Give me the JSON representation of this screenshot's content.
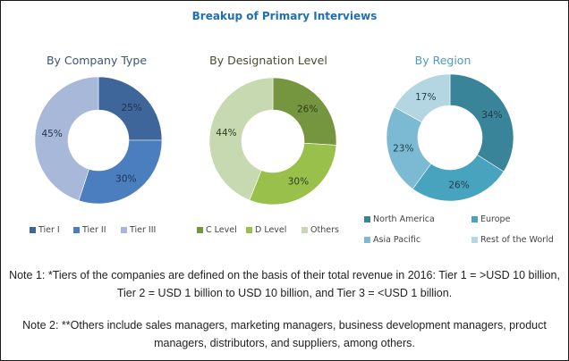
{
  "title": "Breakup of Primary Interviews",
  "chart_data": [
    {
      "type": "pie",
      "subtype": "donut",
      "title": "By Company Type",
      "categories": [
        "Tier I",
        "Tier II",
        "Tier III"
      ],
      "values": [
        25,
        30,
        45
      ],
      "labels": [
        "25%",
        "30%",
        "45%"
      ],
      "colors": [
        "#3f669a",
        "#4a7ebf",
        "#a8b8d8"
      ],
      "legend": "bottom"
    },
    {
      "type": "pie",
      "subtype": "donut",
      "title": "By Designation Level",
      "categories": [
        "C Level",
        "D Level",
        "Others"
      ],
      "values": [
        26,
        30,
        44
      ],
      "labels": [
        "26%",
        "30%",
        "44%"
      ],
      "colors": [
        "#76953f",
        "#98c04a",
        "#c6d9b0"
      ],
      "legend": "bottom"
    },
    {
      "type": "pie",
      "subtype": "donut",
      "title": "By Region",
      "categories": [
        "North America",
        "Europe",
        "Asia Pacific",
        "Rest of the World"
      ],
      "values": [
        34,
        26,
        23,
        17
      ],
      "labels": [
        "34%",
        "26%",
        "23%",
        "17%"
      ],
      "colors": [
        "#3a8499",
        "#48a3bf",
        "#7cbad3",
        "#b4d6e2"
      ],
      "legend": "bottom"
    }
  ],
  "notes": [
    "Note 1: *Tiers of the companies are defined on the basis of their total revenue in 2016: Tier 1 = >USD 10 billion, Tier 2 = USD 1 billion to USD 10 billion, and Tier 3 = <USD 1 billion.",
    "Note 2: **Others include sales managers, marketing managers, business development managers, product managers, distributors, and suppliers, among others."
  ]
}
